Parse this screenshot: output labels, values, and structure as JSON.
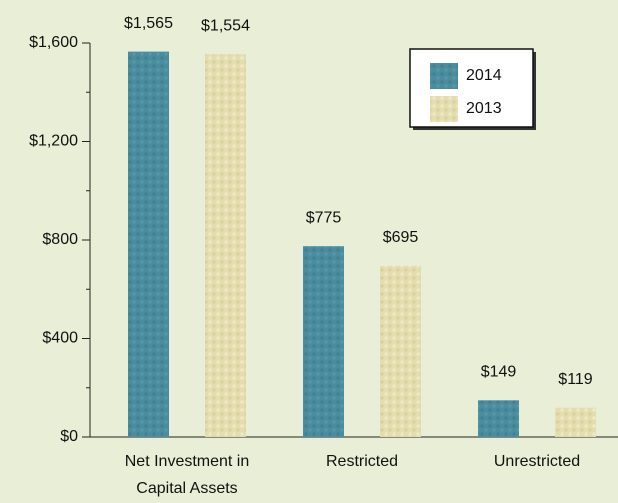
{
  "chart_data": {
    "type": "bar",
    "categories": [
      "Net Investment in Capital Assets",
      "Restricted",
      "Unrestricted"
    ],
    "series": [
      {
        "name": "2014",
        "color": "#4a8d9e",
        "values": [
          1565,
          775,
          149
        ],
        "value_labels": [
          "$1,565",
          "$775",
          "$149"
        ]
      },
      {
        "name": "2013",
        "color": "#e4ddb0",
        "values": [
          1554,
          695,
          119
        ],
        "value_labels": [
          "$1,554",
          "$695",
          "$119"
        ]
      }
    ],
    "ylim": [
      0,
      1600
    ],
    "yticks": [
      {
        "value": 0,
        "label": "$0"
      },
      {
        "value": 400,
        "label": "$400"
      },
      {
        "value": 800,
        "label": "$800"
      },
      {
        "value": 1200,
        "label": "$1,200"
      },
      {
        "value": 1600,
        "label": "$1,600"
      }
    ],
    "minor_yticks": [
      200,
      600,
      1000,
      1400
    ],
    "legend": "upper right"
  }
}
